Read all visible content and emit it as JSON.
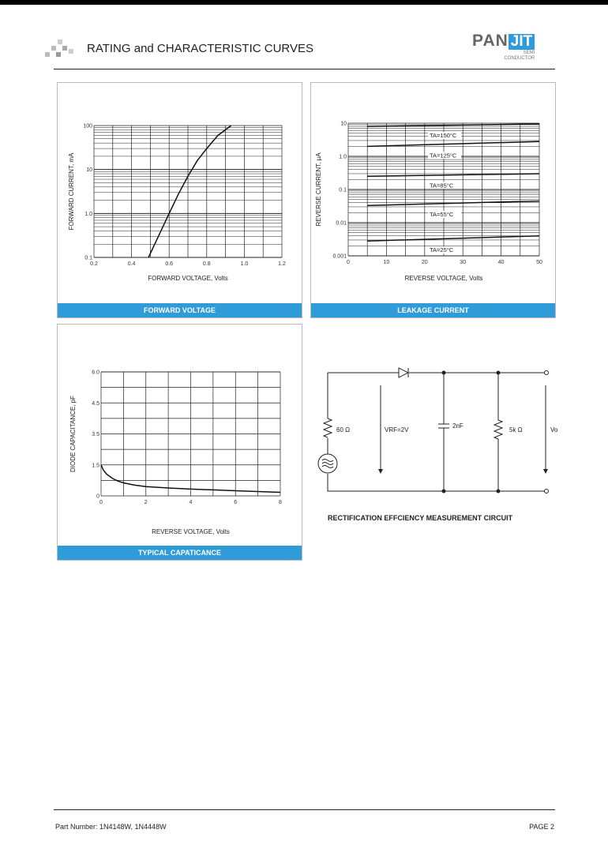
{
  "header": {
    "title": "RATING and CHARACTERISTIC CURVES",
    "logo": {
      "left": "PAN",
      "right": "JIT",
      "sub1": "SEMI",
      "sub2": "CONDUCTOR"
    }
  },
  "panels": {
    "forward": "FORWARD VOLTAGE",
    "leakage": "LEAKAGE CURRENT",
    "capacitance": "TYPICAL CAPATICANCE"
  },
  "chart_data": [
    {
      "id": "forward",
      "type": "line",
      "xlabel": "FORWARD VOLTAGE, Volts",
      "ylabel": "FORWARD CURRENT, mA",
      "xlim": [
        0.2,
        1.2
      ],
      "ylim": [
        0.1,
        100
      ],
      "yscale": "log",
      "grid": true,
      "xticks": [
        "0.2",
        "0.4",
        "0.6",
        "0.8",
        "1.0",
        "1.2"
      ],
      "yticks": [
        "0.1",
        "1.0",
        "10",
        "100"
      ],
      "series": [
        {
          "x": [
            0.49,
            0.55,
            0.6,
            0.65,
            0.7,
            0.75,
            0.8,
            0.86,
            0.93
          ],
          "y": [
            0.1,
            0.35,
            1,
            2.8,
            7,
            16,
            30,
            60,
            100
          ]
        }
      ]
    },
    {
      "id": "leakage",
      "type": "line",
      "xlabel": "REVERSE VOLTAGE, Volts",
      "ylabel": "REVERSE CURRENT, µA",
      "xlim": [
        0,
        50
      ],
      "ylim": [
        0.001,
        10
      ],
      "yscale": "log",
      "grid": true,
      "xticks": [
        "0",
        "10",
        "20",
        "30",
        "40",
        "50"
      ],
      "yticks": [
        "0.001",
        "0.01",
        "0.1",
        "1.0",
        "10"
      ],
      "series": [
        {
          "name": "TA=150°C",
          "x": [
            5,
            50
          ],
          "y": [
            8,
            9.5
          ]
        },
        {
          "name": "TA=125°C",
          "x": [
            5,
            50
          ],
          "y": [
            2.0,
            2.8
          ]
        },
        {
          "name": "TA=85°C",
          "x": [
            5,
            50
          ],
          "y": [
            0.25,
            0.3
          ]
        },
        {
          "name": "TA=55°C",
          "x": [
            5,
            50
          ],
          "y": [
            0.033,
            0.045
          ]
        },
        {
          "name": "TA=25°C",
          "x": [
            5,
            50
          ],
          "y": [
            0.0028,
            0.004
          ]
        }
      ]
    },
    {
      "id": "capacitance",
      "type": "line",
      "xlabel": "REVERSE VOLTAGE, Volts",
      "ylabel": "DIODE CAPACITANCE, pF",
      "xlim": [
        0,
        8
      ],
      "ylim": [
        0,
        6
      ],
      "grid": true,
      "xticks": [
        "0",
        "2",
        "4",
        "6",
        "8"
      ],
      "yticks": [
        "0",
        "1.5",
        "3.5",
        "4.5",
        "6.0"
      ],
      "series": [
        {
          "x": [
            0,
            0.1,
            0.25,
            0.5,
            0.75,
            1,
            1.5,
            2,
            3,
            4,
            5,
            6,
            7,
            8
          ],
          "y": [
            1.5,
            1.25,
            1.05,
            0.85,
            0.72,
            0.63,
            0.52,
            0.45,
            0.38,
            0.33,
            0.29,
            0.25,
            0.21,
            0.17
          ]
        }
      ]
    }
  ],
  "circuit": {
    "title": "RECTIFICATION EFFCIENCY MEASUREMENT CIRCUIT",
    "r1": "60 Ω",
    "vrf": "VRF=2V",
    "cap": "2nF",
    "r2": "5k Ω",
    "vo": "Vo"
  },
  "footer": {
    "part": "Part Number: 1N4148W, 1N4448W",
    "page": "PAGE  2"
  },
  "colors": {
    "accent": "#2f9bd8"
  }
}
